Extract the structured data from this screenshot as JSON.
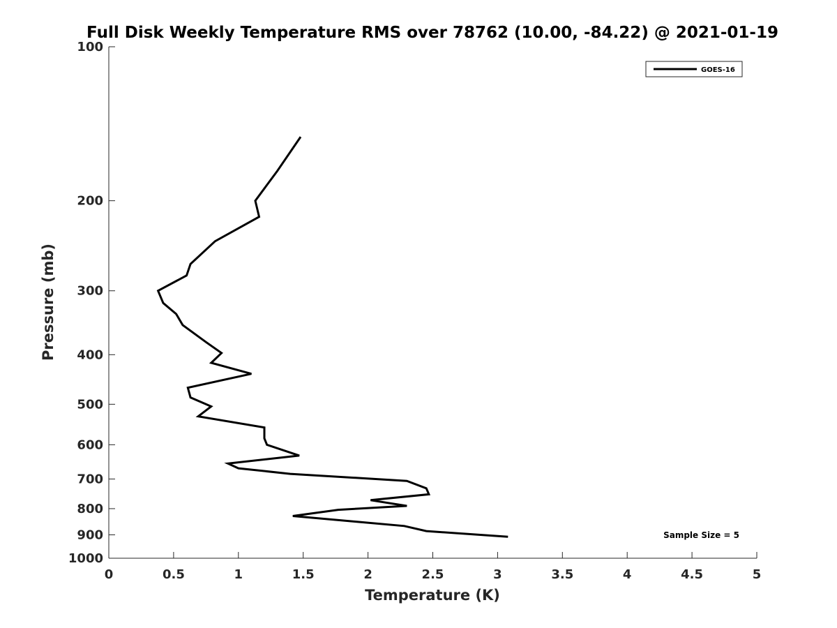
{
  "chart_data": {
    "type": "line",
    "title": "Full Disk Weekly Temperature RMS over 78762 (10.00, -84.22) @ 2021-01-19",
    "xlabel": "Temperature (K)",
    "ylabel": "Pressure (mb)",
    "xlim": [
      0,
      5
    ],
    "ylim": [
      100,
      1000
    ],
    "y_scale": "log",
    "y_reversed": true,
    "x_ticks": [
      "0",
      "0.5",
      "1",
      "1.5",
      "2",
      "2.5",
      "3",
      "3.5",
      "4",
      "4.5",
      "5"
    ],
    "y_ticks": [
      "100",
      "200",
      "300",
      "400",
      "500",
      "600",
      "700",
      "800",
      "900",
      "1000"
    ],
    "grid": false,
    "legend_position": "top-right",
    "annotation": "Sample Size = 5",
    "series": [
      {
        "name": "GOES-16",
        "color": "#000000",
        "x": [
          1.48,
          1.3,
          1.13,
          1.16,
          0.82,
          0.63,
          0.6,
          0.38,
          0.42,
          0.52,
          0.57,
          0.75,
          0.87,
          0.79,
          1.1,
          0.61,
          0.63,
          0.79,
          0.69,
          1.2,
          1.2,
          1.22,
          1.47,
          0.92,
          1.0,
          1.4,
          2.3,
          2.45,
          2.47,
          2.02,
          2.3,
          1.77,
          1.42,
          1.9,
          2.28,
          2.45,
          3.08
        ],
        "y": [
          150,
          175,
          200,
          215,
          240,
          266,
          280,
          300,
          317,
          333,
          350,
          378,
          397,
          415,
          436,
          464,
          485,
          505,
          528,
          555,
          583,
          600,
          630,
          653,
          667,
          684,
          706,
          730,
          750,
          770,
          790,
          804,
          827,
          848,
          865,
          885,
          908
        ]
      }
    ]
  }
}
